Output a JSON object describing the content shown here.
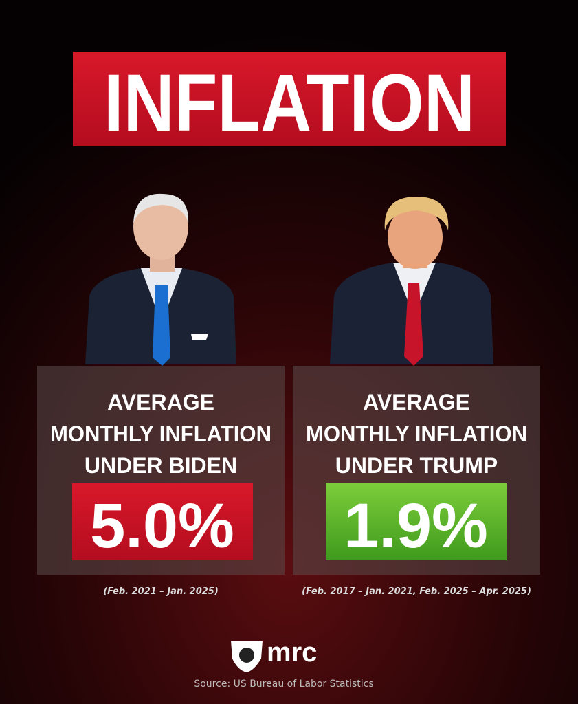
{
  "title": "INFLATION",
  "panels": [
    {
      "label": [
        "AVERAGE",
        "MONTHLY INFLATION",
        "UNDER BIDEN"
      ],
      "value": "5.0%",
      "period": "(Feb. 2021 – Jan. 2025)"
    },
    {
      "label": [
        "AVERAGE",
        "MONTHLY INFLATION",
        "UNDER TRUMP"
      ],
      "value": "1.9%",
      "period": "(Feb. 2017 – Jan. 2021, Feb. 2025 – Apr. 2025)"
    }
  ],
  "logo": "mrc",
  "source": "Source: US Bureau of Labor Statistics"
}
